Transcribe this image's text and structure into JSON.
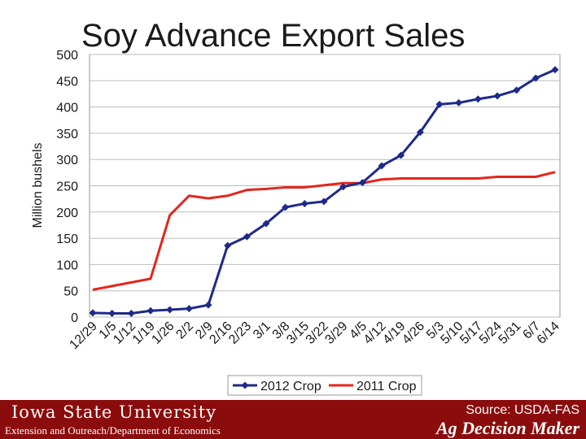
{
  "title": "Soy Advance Export Sales",
  "footer": {
    "university": "Iowa State University",
    "department": "Extension and Outreach/Department of Economics",
    "source": "Source: USDA-FAS",
    "brand": "Ag Decision Maker"
  },
  "colors": {
    "series_2012": "#1f2a8a",
    "series_2011": "#e3261c",
    "footer_bg": "#8b0c0c"
  },
  "chart_data": {
    "type": "line",
    "title": "Soy Advance Export Sales",
    "ylabel": "Million bushels",
    "xlabel": "",
    "ylim": [
      0,
      500
    ],
    "yticks": [
      0,
      50,
      100,
      150,
      200,
      250,
      300,
      350,
      400,
      450,
      500
    ],
    "grid": true,
    "legend": "bottom",
    "categories": [
      "12/29",
      "1/5",
      "1/12",
      "1/19",
      "1/26",
      "2/2",
      "2/9",
      "2/16",
      "2/23",
      "3/1",
      "3/8",
      "3/15",
      "3/22",
      "3/29",
      "4/5",
      "4/12",
      "4/19",
      "4/26",
      "5/3",
      "5/10",
      "5/17",
      "5/24",
      "5/31",
      "6/7",
      "6/14"
    ],
    "series": [
      {
        "name": "2012 Crop",
        "marker": "diamond",
        "values": [
          8,
          7,
          7,
          12,
          14,
          16,
          23,
          136,
          153,
          178,
          209,
          216,
          220,
          248,
          256,
          288,
          308,
          352,
          405,
          408,
          415,
          421,
          432,
          455,
          471
        ]
      },
      {
        "name": "2011 Crop",
        "marker": "none",
        "values": [
          52,
          59,
          66,
          73,
          194,
          231,
          226,
          231,
          242,
          244,
          247,
          247,
          251,
          255,
          255,
          262,
          264,
          264,
          264,
          264,
          264,
          267,
          267,
          267,
          276
        ]
      }
    ]
  }
}
